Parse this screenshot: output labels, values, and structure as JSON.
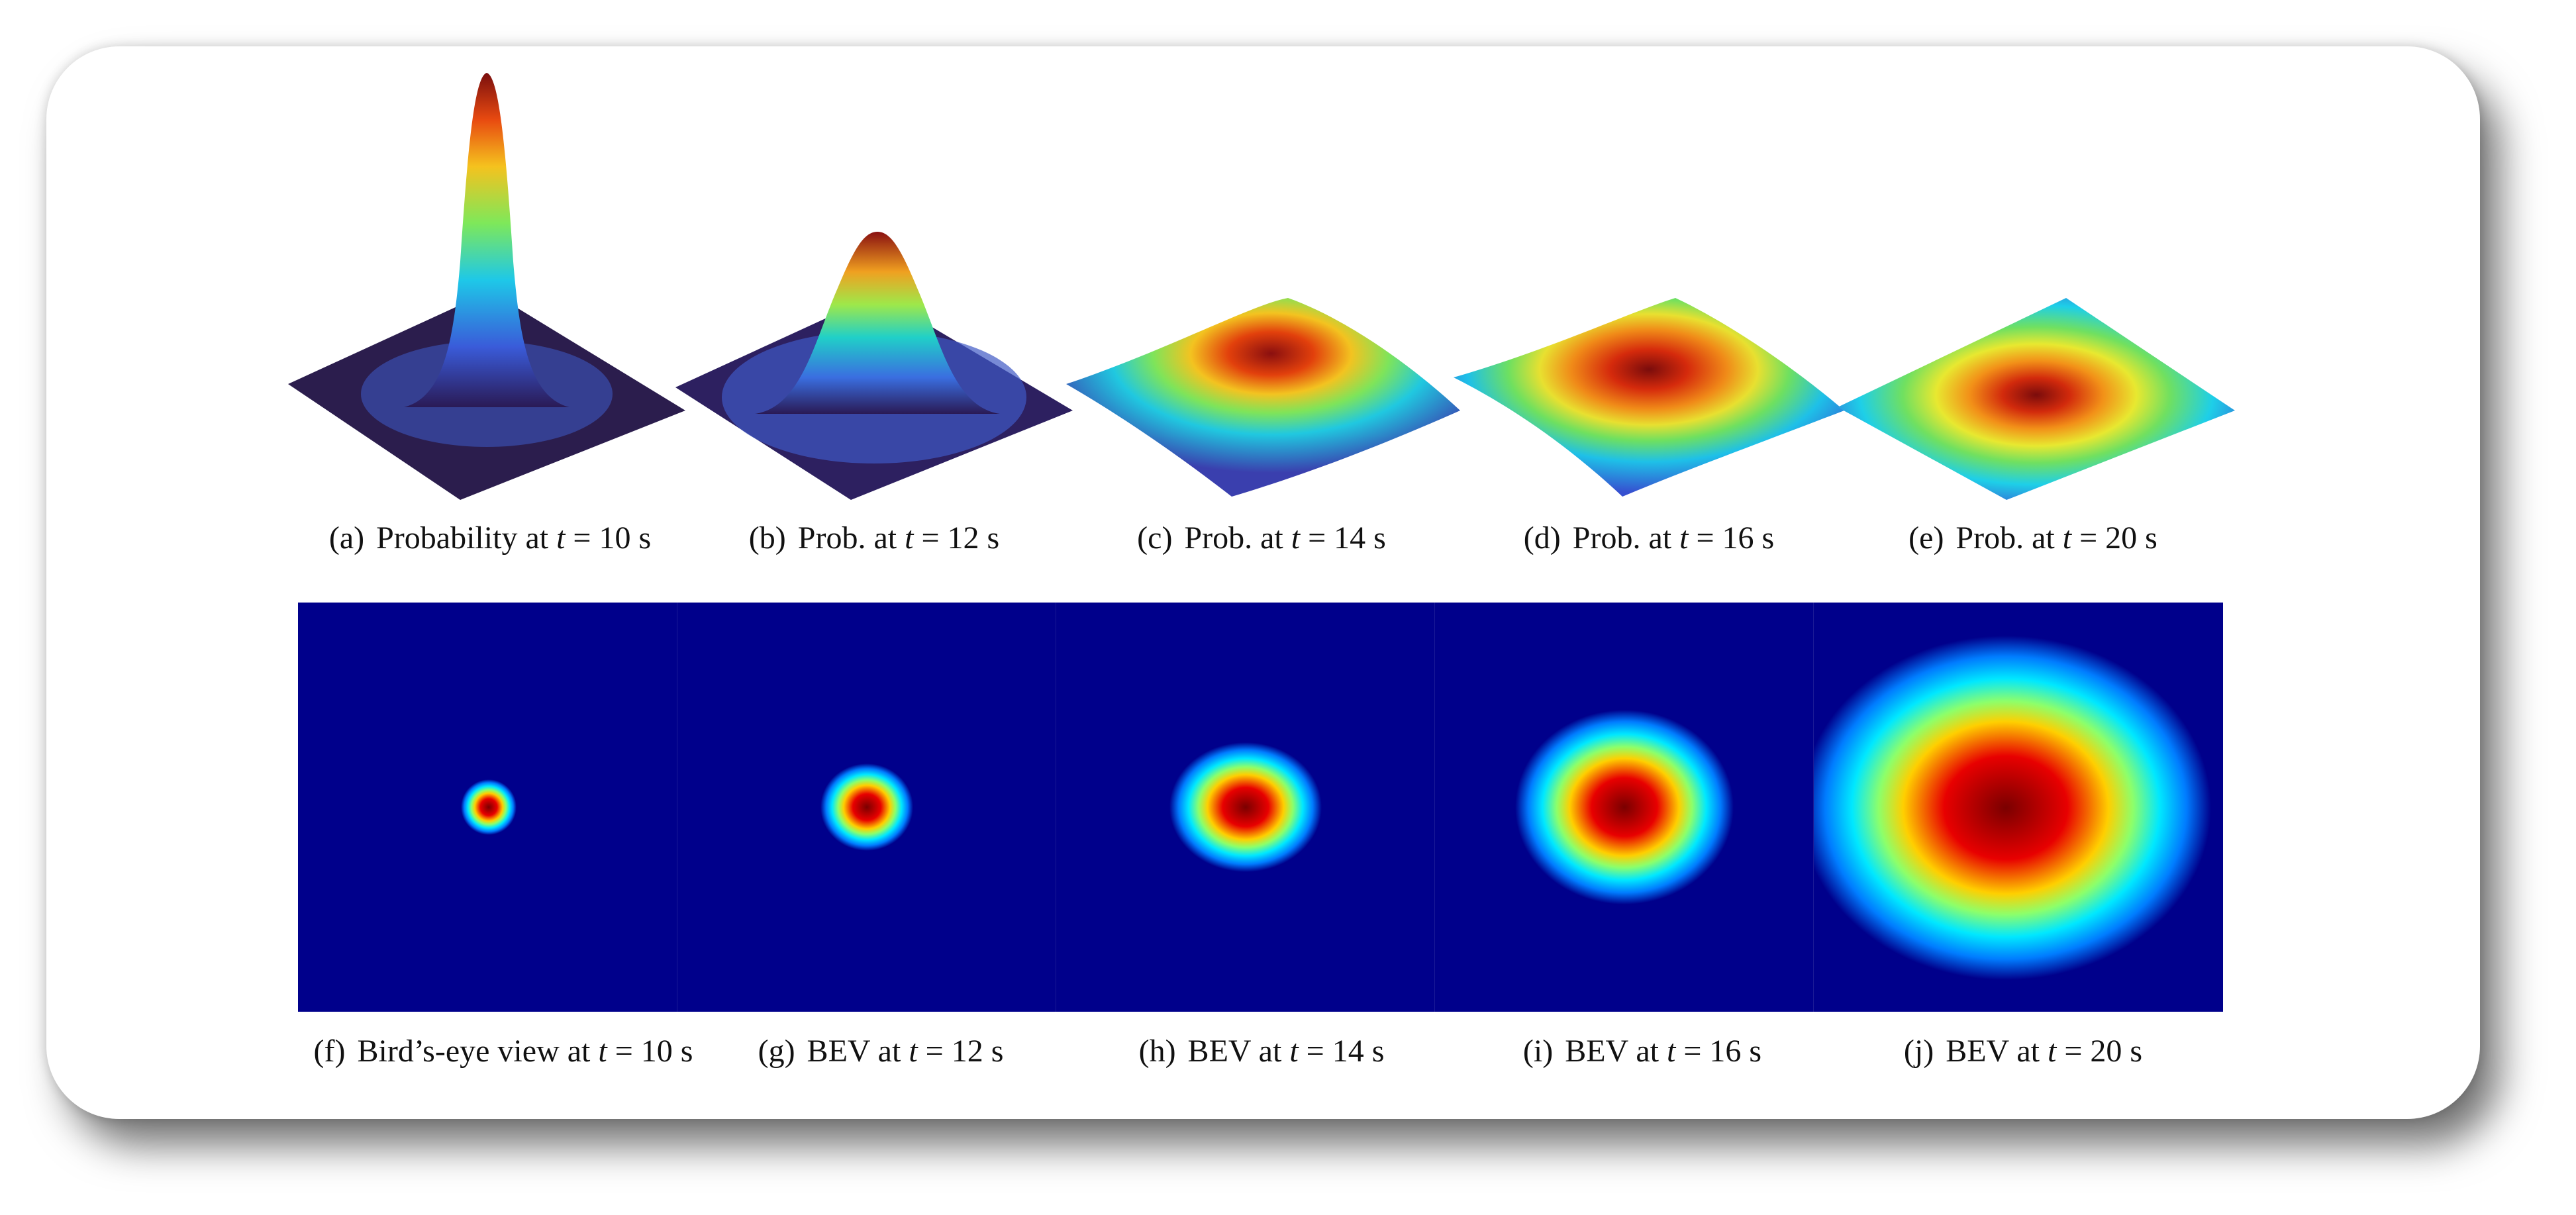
{
  "figure": {
    "top_row": [
      {
        "label": "(a)",
        "text": "Probability at",
        "var": "t",
        "rest": "= 10 s"
      },
      {
        "label": "(b)",
        "text": "Prob. at",
        "var": "t",
        "rest": "= 12 s"
      },
      {
        "label": "(c)",
        "text": "Prob. at",
        "var": "t",
        "rest": "= 14 s"
      },
      {
        "label": "(d)",
        "text": "Prob. at",
        "var": "t",
        "rest": "= 16 s"
      },
      {
        "label": "(e)",
        "text": "Prob. at",
        "var": "t",
        "rest": "= 20 s"
      }
    ],
    "bottom_row": [
      {
        "label": "(f)",
        "text": "Bird’s-eye view at",
        "var": "t",
        "rest": "= 10 s"
      },
      {
        "label": "(g)",
        "text": "BEV at",
        "var": "t",
        "rest": "= 12 s"
      },
      {
        "label": "(h)",
        "text": "BEV at",
        "var": "t",
        "rest": "= 14 s"
      },
      {
        "label": "(i)",
        "text": "BEV at",
        "var": "t",
        "rest": "= 16 s"
      },
      {
        "label": "(j)",
        "text": "BEV at",
        "var": "t",
        "rest": "= 20 s"
      }
    ]
  },
  "colormap": {
    "name": "jet",
    "background": "#00008b",
    "stops": [
      "#7f0000",
      "#d40000",
      "#ff4a00",
      "#ffd200",
      "#9cff5a",
      "#00e5ff",
      "#0088ff",
      "#0000ff"
    ]
  }
}
